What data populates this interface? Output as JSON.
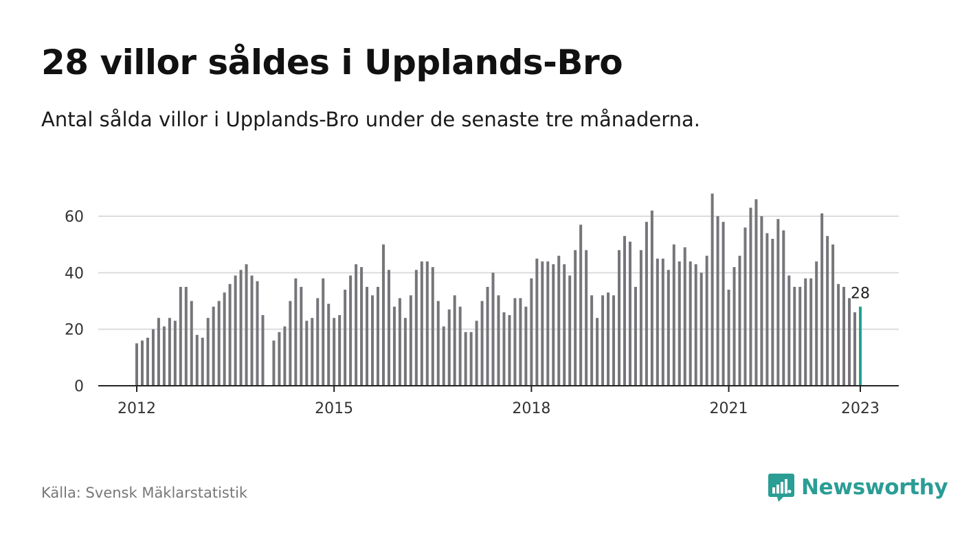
{
  "title": "28 villor såldes i Upplands-Bro",
  "subtitle": "Antal sålda villor i Upplands-Bro under de senaste tre månaderna.",
  "source": "Källa: Svensk Mäklarstatistik",
  "brand": {
    "name": "Newsworthy",
    "icon": "newsworthy-logo-icon",
    "color": "#2a9d95"
  },
  "colors": {
    "bar": "#75757a",
    "highlight": "#21a095",
    "grid": "#dcdcdc",
    "axis": "#222222",
    "tick_text": "#333333"
  },
  "chart_data": {
    "type": "bar",
    "x_start": "2012-01",
    "x_end": "2023-01",
    "xticks": [
      "2012",
      "2015",
      "2018",
      "2021",
      "2023"
    ],
    "yticks": [
      0,
      20,
      40,
      60
    ],
    "ylim": [
      0,
      70
    ],
    "grid": true,
    "highlight_last": true,
    "last_label": "28",
    "values": [
      15,
      16,
      17,
      20,
      24,
      21,
      24,
      23,
      35,
      35,
      30,
      18,
      17,
      24,
      28,
      30,
      33,
      36,
      39,
      41,
      43,
      39,
      37,
      25,
      null,
      16,
      19,
      21,
      30,
      38,
      35,
      23,
      24,
      31,
      38,
      29,
      24,
      25,
      34,
      39,
      43,
      42,
      35,
      32,
      35,
      50,
      41,
      28,
      31,
      24,
      32,
      41,
      44,
      44,
      42,
      30,
      21,
      27,
      32,
      28,
      19,
      19,
      23,
      30,
      35,
      40,
      32,
      26,
      25,
      31,
      31,
      28,
      38,
      45,
      44,
      44,
      43,
      46,
      43,
      39,
      48,
      57,
      48,
      32,
      24,
      32,
      33,
      32,
      48,
      53,
      51,
      35,
      48,
      58,
      62,
      45,
      45,
      41,
      50,
      44,
      49,
      44,
      43,
      40,
      46,
      68,
      60,
      58,
      34,
      42,
      46,
      56,
      63,
      66,
      60,
      54,
      52,
      59,
      55,
      39,
      35,
      35,
      38,
      38,
      44,
      61,
      53,
      50,
      36,
      35,
      31,
      26,
      28
    ]
  }
}
